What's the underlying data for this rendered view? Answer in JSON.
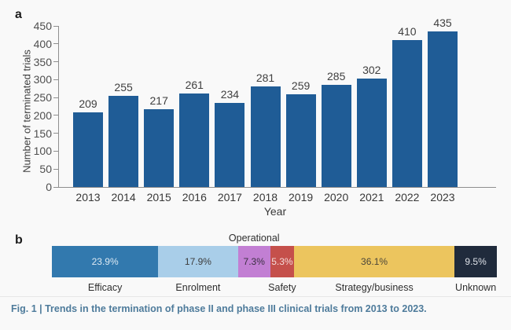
{
  "panel_a_label": "a",
  "panel_b_label": "b",
  "caption": "Fig. 1 | Trends in the termination of phase II and phase III clinical trials from 2013 to 2023.",
  "colors": {
    "bar_blue": "#1f5c96",
    "axis_gray": "#8f8f8f",
    "caption_blue": "#4e7b9b",
    "efficacy": "#3279ae",
    "enrolment": "#a9cee9",
    "operational": "#c27fd3",
    "safety": "#c5504b",
    "strategy": "#ecc55e",
    "unknown": "#202b3c"
  },
  "chart_data": [
    {
      "type": "bar",
      "title": "",
      "categories": [
        "2013",
        "2014",
        "2015",
        "2016",
        "2017",
        "2018",
        "2019",
        "2020",
        "2021",
        "2022",
        "2023"
      ],
      "values": [
        209,
        255,
        217,
        261,
        234,
        281,
        259,
        285,
        302,
        410,
        435
      ],
      "xlabel": "Year",
      "ylabel": "Number of terminated trials",
      "ylim": [
        0,
        450
      ],
      "yticks": [
        0,
        50,
        100,
        150,
        200,
        250,
        300,
        350,
        400,
        450
      ],
      "grid": false,
      "legend": "none",
      "bar_color": "#1f5c96"
    },
    {
      "type": "stacked-bar-horizontal",
      "title": "",
      "segments": [
        {
          "label": "Efficacy",
          "value_pct": 23.9,
          "display": "23.9%",
          "color": "#3279ae",
          "text_color": "#dce9f3",
          "label_position": "below"
        },
        {
          "label": "Enrolment",
          "value_pct": 17.9,
          "display": "17.9%",
          "color": "#a9cee9",
          "text_color": "#3d3d3d",
          "label_position": "below"
        },
        {
          "label": "Operational",
          "value_pct": 7.3,
          "display": "7.3%",
          "color": "#c27fd3",
          "text_color": "#3a2f41",
          "label_position": "above"
        },
        {
          "label": "Safety",
          "value_pct": 5.3,
          "display": "5.3%",
          "color": "#c5504b",
          "text_color": "#f3dbd9",
          "label_position": "below"
        },
        {
          "label": "Strategy/business",
          "value_pct": 36.1,
          "display": "36.1%",
          "color": "#ecc55e",
          "text_color": "#4a4539",
          "label_position": "below"
        },
        {
          "label": "Unknown",
          "value_pct": 9.5,
          "display": "9.5%",
          "color": "#202b3c",
          "text_color": "#dde1e7",
          "label_position": "below"
        }
      ]
    }
  ]
}
